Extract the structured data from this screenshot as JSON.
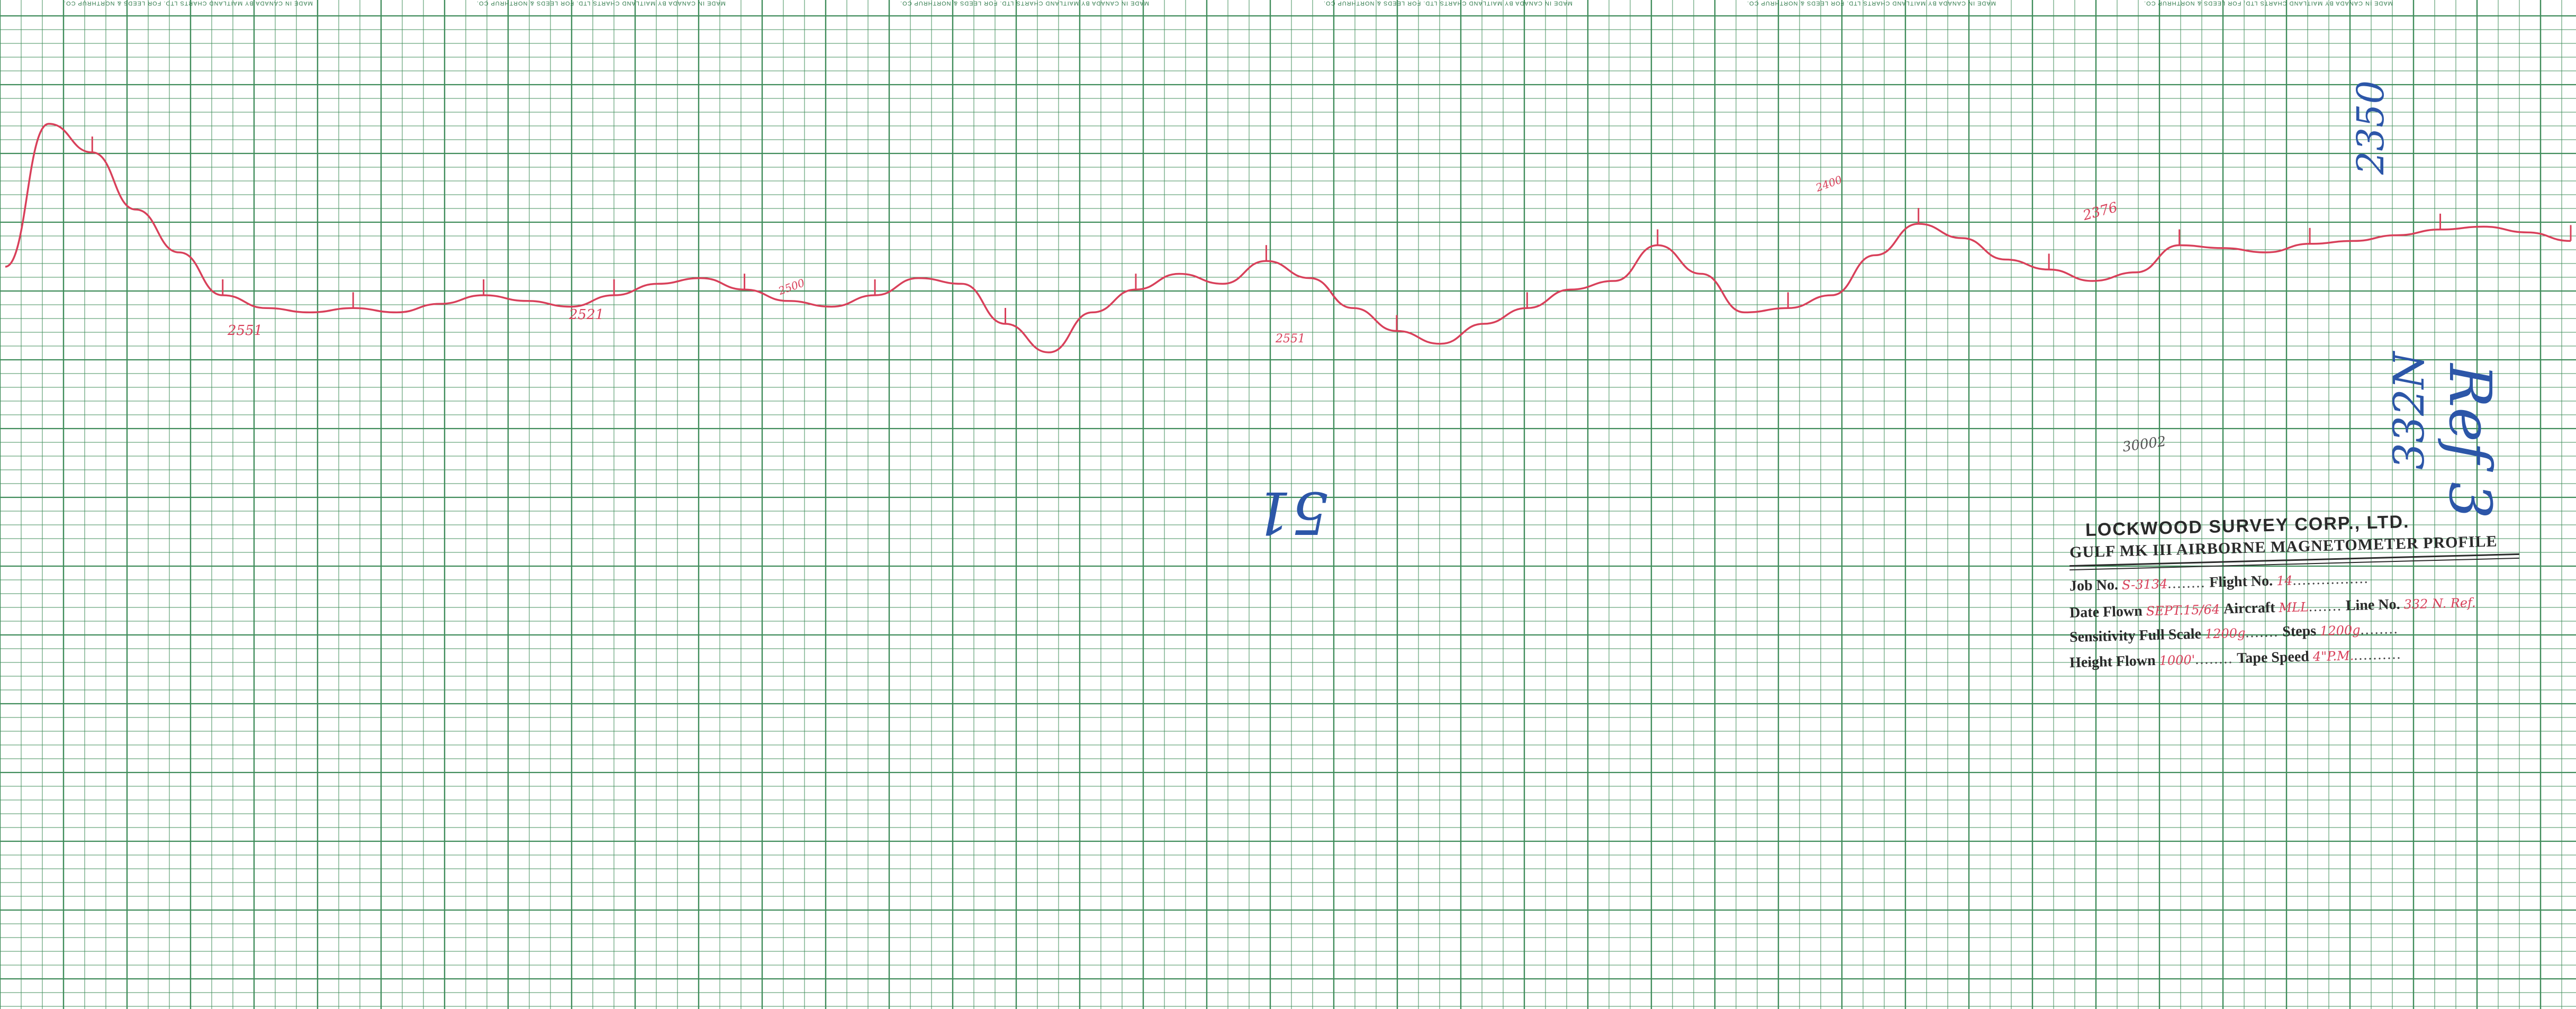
{
  "paper": {
    "grid_color": "#3f8c5a",
    "trace_color": "#d8405a",
    "ink_blue": "#2c56a8",
    "header_repeats": [
      "MADE IN CANADA BY MAITLAND CHARTS LTD. FOR LEEDS & NORTHRUP CO.",
      "MADE IN CANADA BY MAITLAND CHARTS LTD. FOR LEEDS & NORTHRUP CO.",
      "MADE IN CANADA BY MAITLAND CHARTS LTD. FOR LEEDS & NORTHRUP CO.",
      "MADE IN CANADA BY MAITLAND CHARTS LTD. FOR LEEDS & NORTHRUP CO.",
      "MADE IN CANADA BY MAITLAND CHARTS LTD. FOR LEEDS & NORTHRUP CO.",
      "MADE IN CANADA BY MAITLAND CHARTS LTD. FOR LEEDS & NORTHRUP CO."
    ]
  },
  "title_block": {
    "company": "LOCKWOOD SURVEY CORP., LTD.",
    "product": "GULF MK III AIRBORNE MAGNETOMETER PROFILE",
    "job_label": "Job No.",
    "job_value": "S-3134",
    "flight_label": "Flight No.",
    "flight_value": "14",
    "date_label": "Date Flown",
    "date_value": "SEPT.15/64",
    "aircraft_label": "Aircraft",
    "aircraft_value": "MLL",
    "line_label": "Line No.",
    "line_value": "332 N. Ref.",
    "sens_label": "Sensitivity Full Scale",
    "sens_value": "1200g",
    "steps_label": "Steps",
    "steps_value": "1200g",
    "height_label": "Height Flown",
    "height_value": "1000'",
    "tape_label": "Tape Speed",
    "tape_value": "4\"P.M."
  },
  "annotations": {
    "red": [
      {
        "text": "2551"
      },
      {
        "text": "2521"
      },
      {
        "text": "2551"
      },
      {
        "text": "2500"
      },
      {
        "text": "2376"
      },
      {
        "text": "2400"
      },
      {
        "text": "30002"
      }
    ],
    "blue": [
      {
        "text": "2350"
      },
      {
        "text": "332N"
      },
      {
        "text": "51"
      },
      {
        "text": "Ref 3"
      }
    ]
  },
  "chart_data": {
    "type": "line",
    "title": "",
    "xlabel": "",
    "ylabel": "",
    "series": [
      {
        "values": [
          2580,
          2680,
          2660,
          2620,
          2590,
          2560,
          2551,
          2548,
          2551,
          2548,
          2554,
          2560,
          2556,
          2552,
          2560,
          2568,
          2572,
          2564,
          2556,
          2552,
          2560,
          2572,
          2568,
          2540,
          2520,
          2548,
          2564,
          2575,
          2568,
          2584,
          2572,
          2551,
          2535,
          2526,
          2540,
          2551,
          2564,
          2570,
          2595,
          2575,
          2548,
          2551,
          2560,
          2588,
          2610,
          2600,
          2585,
          2578,
          2570,
          2576,
          2595,
          2593,
          2590,
          2596,
          2598,
          2602,
          2606,
          2608,
          2604,
          2598
        ]
      }
    ],
    "grid": true,
    "legend": "none"
  }
}
